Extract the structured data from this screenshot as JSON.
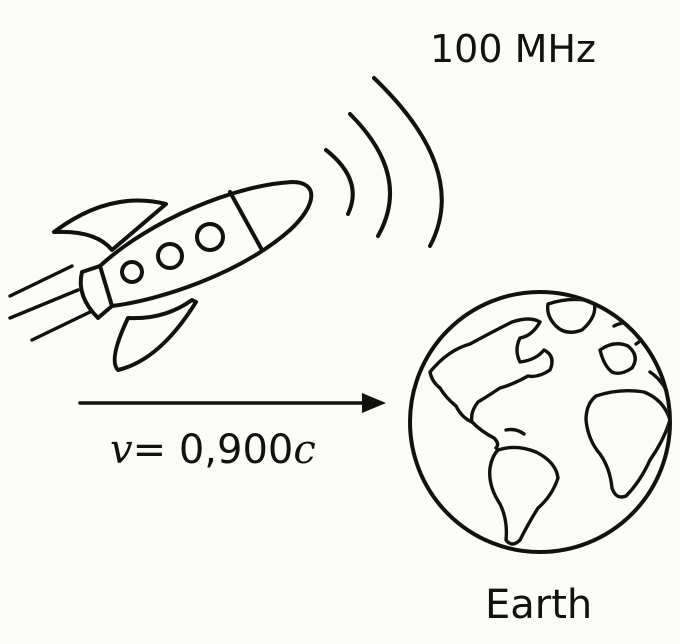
{
  "signal": {
    "frequency_label": "100 MHz"
  },
  "motion": {
    "velocity_symbol": "v",
    "velocity_value": "= 0,900",
    "velocity_unit": "c"
  },
  "planet": {
    "label": "Earth"
  },
  "icons": {
    "rocket": "rocket-icon",
    "waves": "radio-wave-icon",
    "earth": "earth-globe-icon",
    "arrow": "right-arrow-icon"
  }
}
